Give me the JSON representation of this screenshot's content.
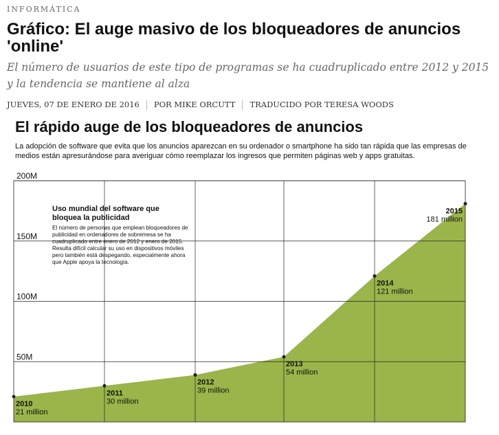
{
  "article": {
    "section": "INFORMÁTICA",
    "title": "Gráfico: El auge masivo de los bloqueadores de anuncios 'online'",
    "subtitle": "El número de usuarios de este tipo de programas se ha cuadruplicado entre 2012 y 2015 y la tendencia se mantiene al alza",
    "date": "JUEVES, 07 DE ENERO DE 2016",
    "author": "POR MIKE ORCUTT",
    "translator": "TRADUCIDO POR TERESA WOODS"
  },
  "chart_header": {
    "title": "El rápido auge de los bloqueadores de anuncios",
    "description": "La adopción de software que evita que los anuncios aparezcan en su ordenador o smartphone ha sido tan rápida que las empresas de medios están apresurándose para averiguar cómo reemplazar los ingresos que permiten páginas web y apps gratuitas."
  },
  "inset": {
    "title": "Uso mundial del software que bloquea la publicidad",
    "body": "El número de personas que emplean bloqueadores de publicidad en ordenadores de sobremesa se ha cuadruplicado entre enero de 2012 y enero de 2015. Resulta difícil calcular su uso en dispositivos móviles pero también está despegando, especialmente ahora que Apple apoya la tecnología."
  },
  "chart_data": {
    "type": "area",
    "x": [
      "2010",
      "2011",
      "2012",
      "2013",
      "2014",
      "2015"
    ],
    "values": [
      21,
      30,
      39,
      54,
      121,
      181
    ],
    "point_labels": [
      "21 million",
      "30 million",
      "39 million",
      "54 million",
      "121 million",
      "181 million"
    ],
    "y_ticks": [
      {
        "value": 50,
        "label": "50M"
      },
      {
        "value": 100,
        "label": "100M"
      },
      {
        "value": 150,
        "label": "150M"
      },
      {
        "value": 200,
        "label": "200M"
      }
    ],
    "ylim": [
      0,
      200
    ],
    "grid": true,
    "fill_color": "#9ab54a",
    "grid_color": "#222222"
  }
}
